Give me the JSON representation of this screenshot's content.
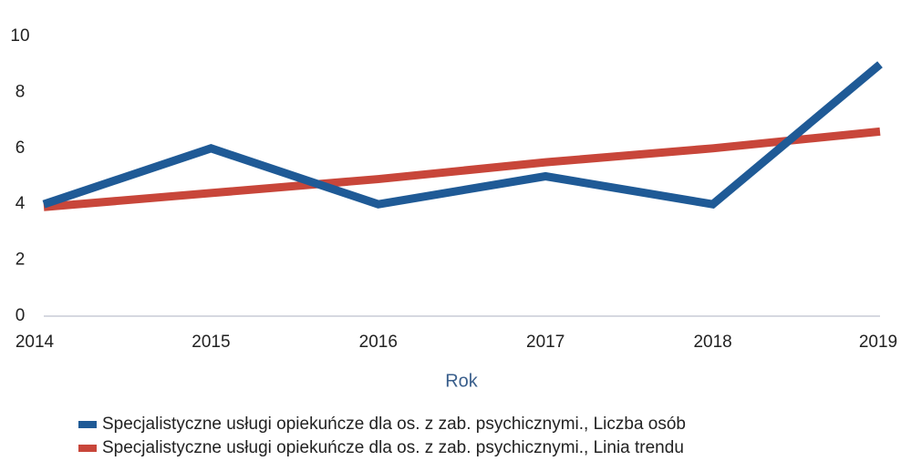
{
  "chart_data": {
    "type": "line",
    "x": [
      2014,
      2015,
      2016,
      2017,
      2018,
      2019
    ],
    "xlim": [
      2014,
      2019
    ],
    "xticks": [
      2014,
      2015,
      2016,
      2017,
      2018,
      2019
    ],
    "ylim": [
      0,
      10
    ],
    "yticks": [
      0,
      2,
      4,
      6,
      8,
      10
    ],
    "x_label": "Rok",
    "series": [
      {
        "name": "Specjalistyczne usługi opiekuńcze dla os. z zab. psychicznymi., Liczba osób",
        "color": "#1f5a96",
        "values": [
          4,
          6,
          4,
          5,
          4,
          9
        ]
      },
      {
        "name": "Specjalistyczne usługi opiekuńcze dla os. z zab. psychicznymi., Linia trendu",
        "color": "#c8463a",
        "values": [
          3.9,
          4.4,
          4.9,
          5.5,
          6.0,
          6.6
        ]
      }
    ],
    "legend": "bottom"
  }
}
